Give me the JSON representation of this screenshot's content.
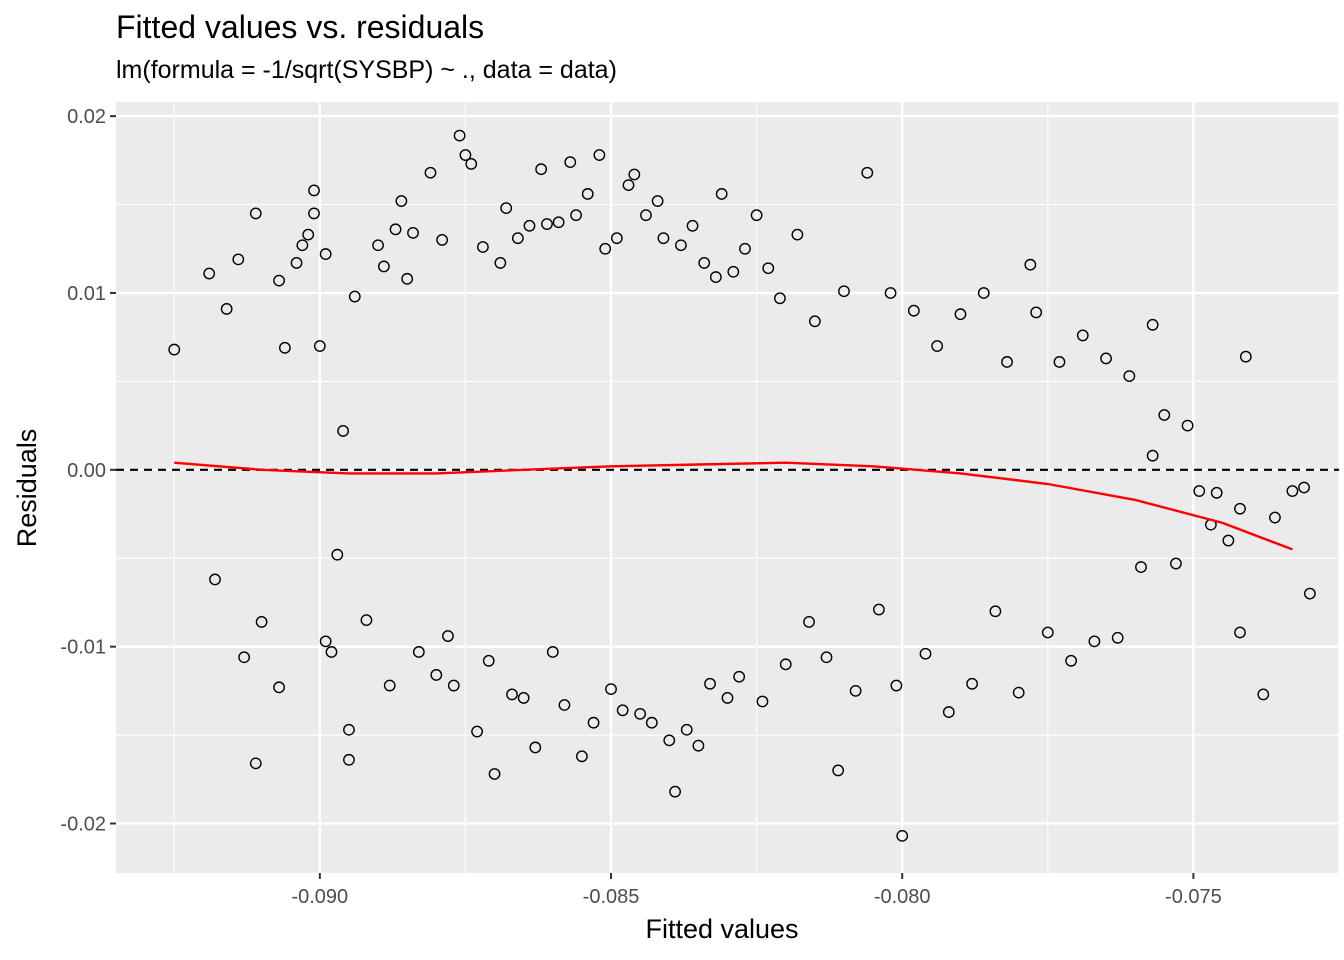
{
  "chart_data": {
    "type": "scatter",
    "title": "Fitted values vs. residuals",
    "subtitle": "lm(formula = -1/sqrt(SYSBP) ~ ., data = data)",
    "xlabel": "Fitted values",
    "ylabel": "Residuals",
    "xlim": [
      -0.0935,
      -0.0725
    ],
    "ylim": [
      -0.0228,
      0.0208
    ],
    "x_ticks": [
      -0.09,
      -0.085,
      -0.08,
      -0.075
    ],
    "x_tick_labels": [
      "-0.090",
      "-0.085",
      "-0.080",
      "-0.075"
    ],
    "y_ticks": [
      0.02,
      0.01,
      0.0,
      -0.01,
      -0.02
    ],
    "y_tick_labels": [
      "0.02",
      "0.01",
      "0.00",
      "-0.01",
      "-0.02"
    ],
    "grid": true,
    "reference_line": {
      "y": 0,
      "style": "dashed",
      "color": "#000000"
    },
    "smooth_line": {
      "color": "#ff0000",
      "x": [
        -0.0925,
        -0.091,
        -0.0895,
        -0.088,
        -0.0865,
        -0.085,
        -0.0835,
        -0.082,
        -0.0805,
        -0.079,
        -0.0775,
        -0.076,
        -0.0745,
        -0.0733
      ],
      "y": [
        0.0004,
        0.0,
        -0.0002,
        -0.0002,
        0.0,
        0.0002,
        0.0003,
        0.0004,
        0.0002,
        -0.0002,
        -0.0008,
        -0.0017,
        -0.003,
        -0.0045
      ]
    },
    "points": [
      [
        -0.0925,
        0.0068
      ],
      [
        -0.0919,
        0.0111
      ],
      [
        -0.0918,
        -0.0062
      ],
      [
        -0.0916,
        0.0091
      ],
      [
        -0.0914,
        0.0119
      ],
      [
        -0.0913,
        -0.0106
      ],
      [
        -0.0911,
        0.0145
      ],
      [
        -0.0911,
        -0.0166
      ],
      [
        -0.091,
        -0.0086
      ],
      [
        -0.0907,
        0.0107
      ],
      [
        -0.0907,
        -0.0123
      ],
      [
        -0.0906,
        0.0069
      ],
      [
        -0.0904,
        0.0117
      ],
      [
        -0.0903,
        0.0127
      ],
      [
        -0.0902,
        0.0133
      ],
      [
        -0.0901,
        0.0158
      ],
      [
        -0.0901,
        0.0145
      ],
      [
        -0.09,
        0.007
      ],
      [
        -0.0899,
        -0.0097
      ],
      [
        -0.0899,
        0.0122
      ],
      [
        -0.0898,
        -0.0103
      ],
      [
        -0.0897,
        -0.0048
      ],
      [
        -0.0896,
        0.0022
      ],
      [
        -0.0895,
        -0.0147
      ],
      [
        -0.0895,
        -0.0164
      ],
      [
        -0.0894,
        0.0098
      ],
      [
        -0.0892,
        -0.0085
      ],
      [
        -0.089,
        0.0127
      ],
      [
        -0.0889,
        0.0115
      ],
      [
        -0.0888,
        -0.0122
      ],
      [
        -0.0887,
        0.0136
      ],
      [
        -0.0886,
        0.0152
      ],
      [
        -0.0885,
        0.0108
      ],
      [
        -0.0884,
        0.0134
      ],
      [
        -0.0883,
        -0.0103
      ],
      [
        -0.0881,
        0.0168
      ],
      [
        -0.088,
        -0.0116
      ],
      [
        -0.0879,
        0.013
      ],
      [
        -0.0878,
        -0.0094
      ],
      [
        -0.0877,
        -0.0122
      ],
      [
        -0.0876,
        0.0189
      ],
      [
        -0.0875,
        0.0178
      ],
      [
        -0.0874,
        0.0173
      ],
      [
        -0.0873,
        -0.0148
      ],
      [
        -0.0872,
        0.0126
      ],
      [
        -0.0871,
        -0.0108
      ],
      [
        -0.087,
        -0.0172
      ],
      [
        -0.0869,
        0.0117
      ],
      [
        -0.0868,
        0.0148
      ],
      [
        -0.0867,
        -0.0127
      ],
      [
        -0.0866,
        0.0131
      ],
      [
        -0.0865,
        -0.0129
      ],
      [
        -0.0864,
        0.0138
      ],
      [
        -0.0863,
        -0.0157
      ],
      [
        -0.0862,
        0.017
      ],
      [
        -0.0861,
        0.0139
      ],
      [
        -0.086,
        -0.0103
      ],
      [
        -0.0859,
        0.014
      ],
      [
        -0.0858,
        -0.0133
      ],
      [
        -0.0857,
        0.0174
      ],
      [
        -0.0856,
        0.0144
      ],
      [
        -0.0855,
        -0.0162
      ],
      [
        -0.0854,
        0.0156
      ],
      [
        -0.0853,
        -0.0143
      ],
      [
        -0.0852,
        0.0178
      ],
      [
        -0.0851,
        0.0125
      ],
      [
        -0.085,
        -0.0124
      ],
      [
        -0.0849,
        0.0131
      ],
      [
        -0.0848,
        -0.0136
      ],
      [
        -0.0847,
        0.0161
      ],
      [
        -0.0846,
        0.0167
      ],
      [
        -0.0845,
        -0.0138
      ],
      [
        -0.0844,
        0.0144
      ],
      [
        -0.0843,
        -0.0143
      ],
      [
        -0.0842,
        0.0152
      ],
      [
        -0.0841,
        0.0131
      ],
      [
        -0.084,
        -0.0153
      ],
      [
        -0.0839,
        -0.0182
      ],
      [
        -0.0838,
        0.0127
      ],
      [
        -0.0837,
        -0.0147
      ],
      [
        -0.0836,
        0.0138
      ],
      [
        -0.0835,
        -0.0156
      ],
      [
        -0.0834,
        0.0117
      ],
      [
        -0.0833,
        -0.0121
      ],
      [
        -0.0832,
        0.0109
      ],
      [
        -0.0831,
        0.0156
      ],
      [
        -0.083,
        -0.0129
      ],
      [
        -0.0829,
        0.0112
      ],
      [
        -0.0828,
        -0.0117
      ],
      [
        -0.0827,
        0.0125
      ],
      [
        -0.0825,
        0.0144
      ],
      [
        -0.0824,
        -0.0131
      ],
      [
        -0.0823,
        0.0114
      ],
      [
        -0.0821,
        0.0097
      ],
      [
        -0.082,
        -0.011
      ],
      [
        -0.0818,
        0.0133
      ],
      [
        -0.0816,
        -0.0086
      ],
      [
        -0.0815,
        0.0084
      ],
      [
        -0.0813,
        -0.0106
      ],
      [
        -0.0811,
        -0.017
      ],
      [
        -0.081,
        0.0101
      ],
      [
        -0.0808,
        -0.0125
      ],
      [
        -0.0806,
        0.0168
      ],
      [
        -0.0804,
        -0.0079
      ],
      [
        -0.0802,
        0.01
      ],
      [
        -0.0801,
        -0.0122
      ],
      [
        -0.08,
        -0.0207
      ],
      [
        -0.0798,
        0.009
      ],
      [
        -0.0796,
        -0.0104
      ],
      [
        -0.0794,
        0.007
      ],
      [
        -0.0792,
        -0.0137
      ],
      [
        -0.079,
        0.0088
      ],
      [
        -0.0788,
        -0.0121
      ],
      [
        -0.0786,
        0.01
      ],
      [
        -0.0784,
        -0.008
      ],
      [
        -0.0782,
        0.0061
      ],
      [
        -0.078,
        -0.0126
      ],
      [
        -0.0778,
        0.0116
      ],
      [
        -0.0777,
        0.0089
      ],
      [
        -0.0775,
        -0.0092
      ],
      [
        -0.0773,
        0.0061
      ],
      [
        -0.0771,
        -0.0108
      ],
      [
        -0.0769,
        0.0076
      ],
      [
        -0.0767,
        -0.0097
      ],
      [
        -0.0765,
        0.0063
      ],
      [
        -0.0763,
        -0.0095
      ],
      [
        -0.0761,
        0.0053
      ],
      [
        -0.0759,
        -0.0055
      ],
      [
        -0.0757,
        0.0082
      ],
      [
        -0.0755,
        0.0031
      ],
      [
        -0.0753,
        -0.0053
      ],
      [
        -0.0751,
        0.0025
      ],
      [
        -0.0749,
        -0.0012
      ],
      [
        -0.0746,
        -0.0013
      ],
      [
        -0.0744,
        -0.004
      ],
      [
        -0.0742,
        -0.0022
      ],
      [
        -0.0741,
        0.0064
      ],
      [
        -0.0742,
        -0.0092
      ],
      [
        -0.0738,
        -0.0127
      ],
      [
        -0.0736,
        -0.0027
      ],
      [
        -0.0733,
        -0.0012
      ],
      [
        -0.0731,
        -0.001
      ],
      [
        -0.073,
        -0.007
      ],
      [
        -0.0747,
        -0.0031
      ],
      [
        -0.0757,
        0.0008
      ]
    ]
  }
}
